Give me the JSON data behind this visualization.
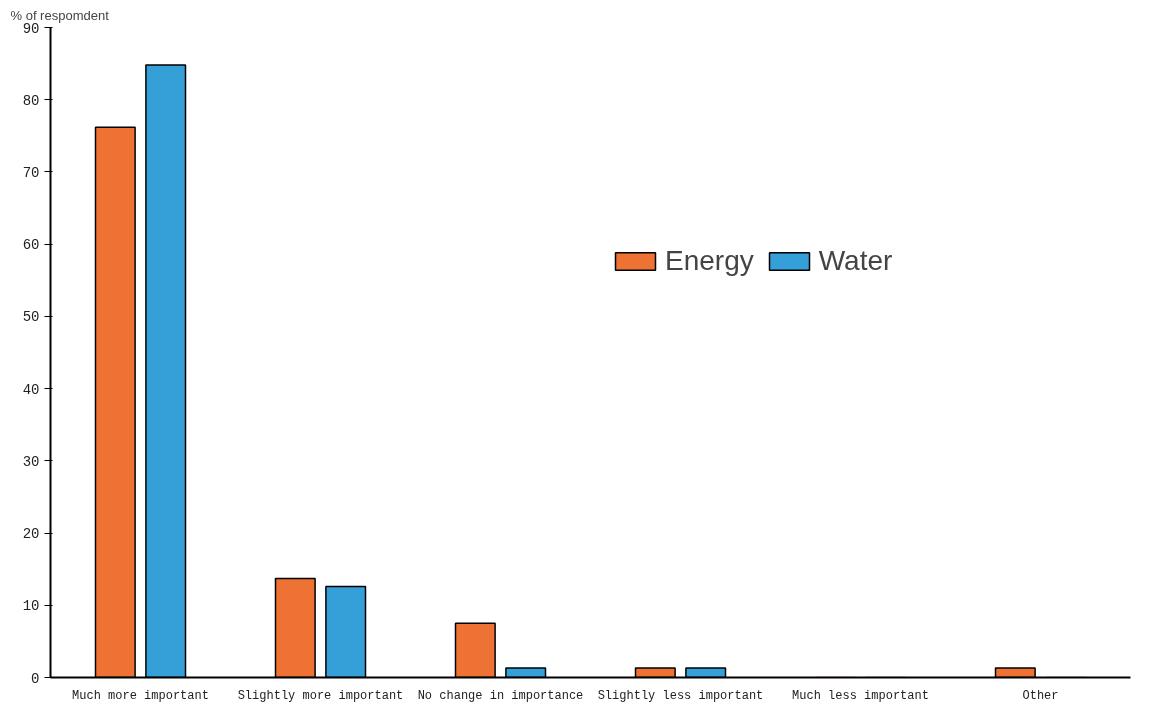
{
  "chart_data": {
    "type": "bar",
    "ylabel": "% of respomdent",
    "categories": [
      "Much more important",
      "Slightly more important",
      "No change in importance",
      "Slightly less important",
      "Much less important",
      "Other"
    ],
    "series": [
      {
        "name": "Energy",
        "color": "#ed7234",
        "values": [
          76.2,
          13.7,
          7.5,
          1.3,
          0,
          1.3
        ]
      },
      {
        "name": "Water",
        "color": "#359fd8",
        "values": [
          84.8,
          12.6,
          1.3,
          1.3,
          0,
          0
        ]
      }
    ],
    "ylim": [
      0,
      90
    ],
    "yticks": [
      0,
      10,
      20,
      30,
      40,
      50,
      60,
      70,
      80,
      90
    ],
    "grid": false,
    "legend": "right"
  }
}
